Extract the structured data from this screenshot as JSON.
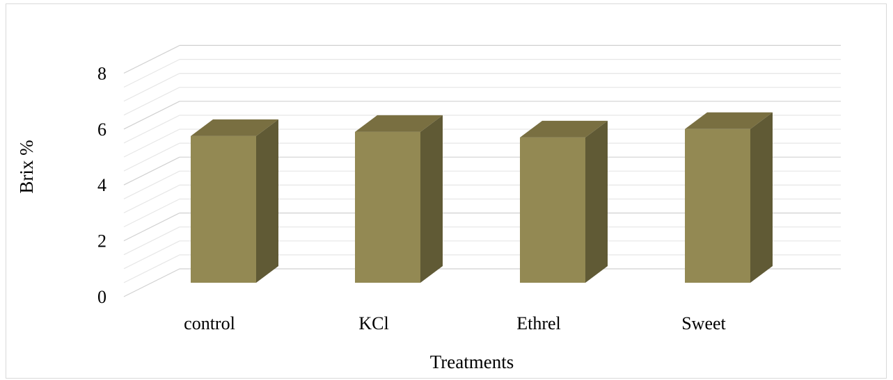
{
  "chart_data": {
    "type": "bar",
    "style": "3d-column",
    "categories": [
      "control",
      "KCl",
      "Ethrel",
      "Sweet"
    ],
    "values": [
      5.75,
      5.9,
      5.7,
      6.0
    ],
    "xlabel": "Treatments",
    "ylabel": "Brix %",
    "ylim": [
      0,
      8
    ],
    "yticks": [
      "0",
      "2",
      "4",
      "6",
      "8"
    ],
    "grid": true,
    "legend": "none",
    "colors": {
      "bar_front": "#938953",
      "bar_top": "#796f41",
      "bar_side": "#605a35",
      "grid": "#d9d9d9"
    }
  }
}
